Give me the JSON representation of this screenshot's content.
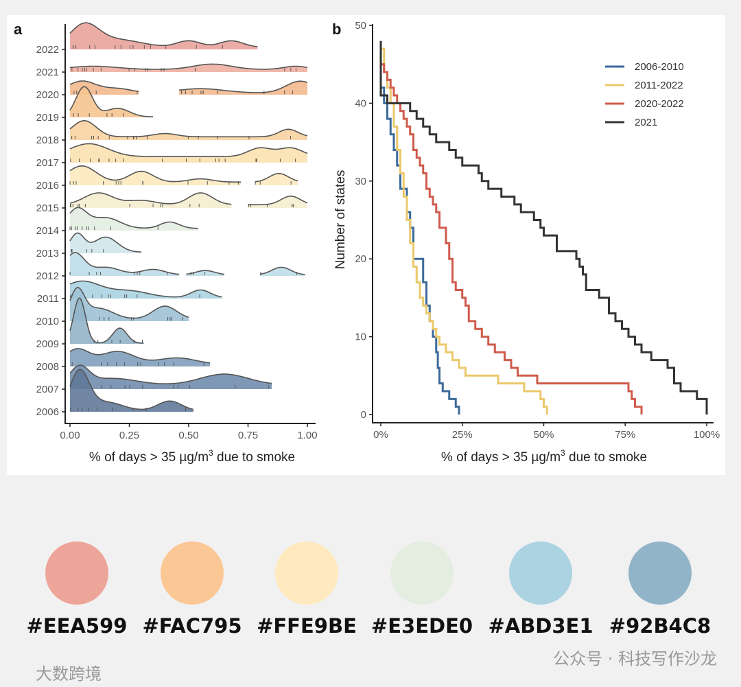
{
  "chart_data": [
    {
      "type": "ridgeline",
      "panel_label": "a",
      "xlabel": "% of days > 35 µg/m",
      "xlabel_sup": "3",
      "xlabel_tail": " due to smoke",
      "xlim": [
        0,
        1
      ],
      "xticks": [
        "0.00",
        "0.25",
        "0.50",
        "0.75",
        "1.00"
      ],
      "series": [
        {
          "year": "2022",
          "color": "#E9A39B",
          "segments": [
            [
              0,
              0.79
            ]
          ],
          "base": 0.1,
          "peaks": [
            [
              0.06,
              0.06,
              1.0
            ],
            [
              0.2,
              0.1,
              0.35
            ],
            [
              0.5,
              0.05,
              0.3
            ],
            [
              0.68,
              0.05,
              0.3
            ]
          ]
        },
        {
          "year": "2021",
          "color": "#EEB0A2",
          "segments": [
            [
              0,
              1
            ]
          ],
          "base": 0.12,
          "peaks": [
            [
              0.1,
              0.1,
              0.15
            ],
            [
              0.6,
              0.08,
              0.25
            ],
            [
              0.95,
              0.05,
              0.15
            ]
          ]
        },
        {
          "year": "2020",
          "color": "#F2B98E",
          "segments": [
            [
              0,
              0.29
            ],
            [
              0.46,
              1
            ]
          ],
          "base": 0.08,
          "peaks": [
            [
              0.05,
              0.06,
              0.55
            ],
            [
              0.2,
              0.06,
              0.2
            ],
            [
              0.55,
              0.1,
              0.2
            ],
            [
              0.97,
              0.06,
              0.55
            ]
          ]
        },
        {
          "year": "2019",
          "color": "#F5C48F",
          "segments": [
            [
              0,
              0.35
            ]
          ],
          "base": 0.02,
          "peaks": [
            [
              0.06,
              0.035,
              1.4
            ],
            [
              0.2,
              0.05,
              0.4
            ]
          ]
        },
        {
          "year": "2018",
          "color": "#F8D3A2",
          "segments": [
            [
              0,
              1
            ]
          ],
          "base": 0.15,
          "peaks": [
            [
              0.06,
              0.05,
              0.75
            ],
            [
              0.4,
              0.05,
              0.15
            ],
            [
              0.92,
              0.04,
              0.35
            ]
          ]
        },
        {
          "year": "2017",
          "color": "#FBE1B0",
          "segments": [
            [
              0,
              1
            ]
          ],
          "base": 0.28,
          "peaks": [
            [
              0.08,
              0.08,
              0.6
            ],
            [
              0.8,
              0.05,
              0.4
            ],
            [
              0.93,
              0.05,
              0.4
            ]
          ]
        },
        {
          "year": "2016",
          "color": "#FCE9BE",
          "segments": [
            [
              0,
              0.72
            ],
            [
              0.78,
              0.96
            ]
          ],
          "base": 0.15,
          "peaks": [
            [
              0.05,
              0.06,
              0.75
            ],
            [
              0.3,
              0.05,
              0.5
            ],
            [
              0.55,
              0.05,
              0.15
            ],
            [
              0.88,
              0.04,
              0.4
            ]
          ]
        },
        {
          "year": "2015",
          "color": "#F5EDCF",
          "segments": [
            [
              0,
              0.68
            ],
            [
              0.75,
              1
            ]
          ],
          "base": 0.15,
          "peaks": [
            [
              0.12,
              0.06,
              0.55
            ],
            [
              0.3,
              0.06,
              0.2
            ],
            [
              0.55,
              0.05,
              0.55
            ],
            [
              0.93,
              0.04,
              0.4
            ]
          ]
        },
        {
          "year": "2014",
          "color": "#E3EDE0",
          "segments": [
            [
              0,
              0.54
            ]
          ],
          "base": 0.1,
          "peaks": [
            [
              0.03,
              0.04,
              0.9
            ],
            [
              0.15,
              0.06,
              0.5
            ],
            [
              0.42,
              0.04,
              0.3
            ]
          ]
        },
        {
          "year": "2013",
          "color": "#CFE6EC",
          "segments": [
            [
              0,
              0.3
            ]
          ],
          "base": 0.05,
          "peaks": [
            [
              0.03,
              0.03,
              0.85
            ],
            [
              0.15,
              0.05,
              0.7
            ]
          ]
        },
        {
          "year": "2012",
          "color": "#BEDDE8",
          "segments": [
            [
              0,
              0.46
            ],
            [
              0.49,
              0.65
            ],
            [
              0.8,
              0.99
            ]
          ],
          "base": 0.05,
          "peaks": [
            [
              0.02,
              0.04,
              1.0
            ],
            [
              0.15,
              0.06,
              0.35
            ],
            [
              0.35,
              0.05,
              0.25
            ],
            [
              0.57,
              0.04,
              0.2
            ],
            [
              0.89,
              0.04,
              0.35
            ]
          ]
        },
        {
          "year": "2011",
          "color": "#ABD3E1",
          "segments": [
            [
              0,
              0.64
            ]
          ],
          "base": 0.05,
          "peaks": [
            [
              0.05,
              0.08,
              0.75
            ],
            [
              0.25,
              0.08,
              0.3
            ],
            [
              0.55,
              0.04,
              0.35
            ]
          ]
        },
        {
          "year": "2010",
          "color": "#9FC2D6",
          "segments": [
            [
              0,
              0.5
            ]
          ],
          "base": 0.1,
          "peaks": [
            [
              0.03,
              0.03,
              1.3
            ],
            [
              0.12,
              0.06,
              0.5
            ],
            [
              0.4,
              0.05,
              0.6
            ]
          ]
        },
        {
          "year": "2009",
          "color": "#92B4C8",
          "segments": [
            [
              0,
              0.31
            ]
          ],
          "base": 0.03,
          "peaks": [
            [
              0.04,
              0.025,
              2.1
            ],
            [
              0.21,
              0.03,
              0.7
            ]
          ]
        },
        {
          "year": "2008",
          "color": "#809EBB",
          "segments": [
            [
              0,
              0.59
            ]
          ],
          "base": 0.1,
          "peaks": [
            [
              0.03,
              0.05,
              0.7
            ],
            [
              0.2,
              0.07,
              0.6
            ],
            [
              0.45,
              0.08,
              0.3
            ]
          ]
        },
        {
          "year": "2007",
          "color": "#718DAE",
          "segments": [
            [
              0,
              0.85
            ]
          ],
          "base": 0.2,
          "peaks": [
            [
              0.04,
              0.04,
              0.8
            ],
            [
              0.18,
              0.1,
              0.3
            ],
            [
              0.65,
              0.1,
              0.5
            ]
          ]
        },
        {
          "year": "2006",
          "color": "#627A9A",
          "segments": [
            [
              0,
              0.52
            ]
          ],
          "base": 0.05,
          "peaks": [
            [
              0.04,
              0.04,
              1.8
            ],
            [
              0.15,
              0.07,
              0.4
            ],
            [
              0.42,
              0.05,
              0.45
            ]
          ]
        }
      ]
    },
    {
      "type": "line",
      "step": true,
      "panel_label": "b",
      "xlabel": "% of days > 35 µg/m",
      "xlabel_sup": "3",
      "xlabel_tail": " due to smoke",
      "ylabel": "Number of states",
      "xlim": [
        0,
        100
      ],
      "ylim": [
        0,
        50
      ],
      "xticks": [
        "0%",
        "25%",
        "50%",
        "75%",
        "100%"
      ],
      "yticks": [
        "0",
        "10",
        "20",
        "30",
        "40",
        "50"
      ],
      "legend_position": "top-right",
      "series": [
        {
          "name": "2006-2010",
          "color": "#3B6A9A",
          "points": [
            [
              0,
              47
            ],
            [
              0,
              42
            ],
            [
              1,
              40
            ],
            [
              2,
              38
            ],
            [
              3,
              36
            ],
            [
              4,
              34
            ],
            [
              5,
              32
            ],
            [
              6,
              29
            ],
            [
              8,
              29
            ],
            [
              8,
              26
            ],
            [
              9,
              24
            ],
            [
              10,
              20
            ],
            [
              12,
              20
            ],
            [
              13,
              17
            ],
            [
              14,
              14
            ],
            [
              15,
              12
            ],
            [
              16,
              10
            ],
            [
              17,
              8
            ],
            [
              17.5,
              6
            ],
            [
              18,
              4
            ],
            [
              19,
              3
            ],
            [
              21,
              2
            ],
            [
              23,
              1
            ],
            [
              24,
              0
            ]
          ]
        },
        {
          "name": "2011-2022",
          "color": "#EBC86A",
          "points": [
            [
              0,
              47
            ],
            [
              1,
              44
            ],
            [
              2,
              42
            ],
            [
              3,
              40
            ],
            [
              4,
              37
            ],
            [
              5,
              34
            ],
            [
              6,
              31
            ],
            [
              7,
              28
            ],
            [
              8,
              25
            ],
            [
              9,
              22
            ],
            [
              10,
              19
            ],
            [
              11,
              17
            ],
            [
              12,
              15
            ],
            [
              13,
              14
            ],
            [
              14,
              13
            ],
            [
              15,
              12
            ],
            [
              16,
              11
            ],
            [
              17,
              10
            ],
            [
              18,
              9
            ],
            [
              20,
              8
            ],
            [
              22,
              7
            ],
            [
              24,
              6
            ],
            [
              26,
              5
            ],
            [
              35,
              5
            ],
            [
              36,
              4
            ],
            [
              43,
              4
            ],
            [
              44,
              3
            ],
            [
              48,
              3
            ],
            [
              49,
              2
            ],
            [
              50,
              1
            ],
            [
              51,
              0
            ]
          ]
        },
        {
          "name": "2020-2022",
          "color": "#CF5B4C",
          "points": [
            [
              0,
              45
            ],
            [
              1,
              44
            ],
            [
              2,
              43
            ],
            [
              3,
              42
            ],
            [
              4,
              41
            ],
            [
              5,
              40
            ],
            [
              6,
              39
            ],
            [
              7,
              38
            ],
            [
              8,
              37
            ],
            [
              9,
              36
            ],
            [
              10,
              34
            ],
            [
              11,
              33
            ],
            [
              12,
              32
            ],
            [
              13,
              31
            ],
            [
              14,
              29
            ],
            [
              15,
              28
            ],
            [
              16,
              27
            ],
            [
              17,
              26
            ],
            [
              18,
              24
            ],
            [
              20,
              22
            ],
            [
              21,
              20
            ],
            [
              22,
              17
            ],
            [
              23,
              16
            ],
            [
              25,
              15
            ],
            [
              26,
              14
            ],
            [
              27,
              12
            ],
            [
              29,
              11
            ],
            [
              31,
              10
            ],
            [
              33,
              9
            ],
            [
              35,
              8
            ],
            [
              38,
              7
            ],
            [
              40,
              6
            ],
            [
              42,
              5
            ],
            [
              48,
              4
            ],
            [
              76,
              3
            ],
            [
              77,
              2
            ],
            [
              78,
              1
            ],
            [
              80,
              0
            ]
          ]
        },
        {
          "name": "2021",
          "color": "#333333",
          "points": [
            [
              0,
              48
            ],
            [
              0,
              41
            ],
            [
              2,
              41
            ],
            [
              2,
              40
            ],
            [
              7,
              40
            ],
            [
              9,
              39
            ],
            [
              11,
              38
            ],
            [
              13,
              37
            ],
            [
              15,
              36
            ],
            [
              17,
              35
            ],
            [
              21,
              34
            ],
            [
              23,
              33
            ],
            [
              25,
              32
            ],
            [
              30,
              31
            ],
            [
              31,
              30
            ],
            [
              33,
              29
            ],
            [
              37,
              28
            ],
            [
              41,
              27
            ],
            [
              43,
              26
            ],
            [
              47,
              25
            ],
            [
              49,
              24
            ],
            [
              50,
              23
            ],
            [
              54,
              21
            ],
            [
              60,
              20
            ],
            [
              61,
              19
            ],
            [
              62,
              18
            ],
            [
              63,
              16
            ],
            [
              67,
              15
            ],
            [
              70,
              13
            ],
            [
              72,
              12
            ],
            [
              74,
              11
            ],
            [
              76,
              10
            ],
            [
              78,
              9
            ],
            [
              80,
              8
            ],
            [
              83,
              7
            ],
            [
              88,
              6
            ],
            [
              90,
              4
            ],
            [
              92,
              3
            ],
            [
              97,
              3
            ],
            [
              97,
              2
            ],
            [
              100,
              2
            ],
            [
              100,
              0
            ]
          ]
        }
      ]
    }
  ],
  "palette": [
    {
      "hex": "#EEA599",
      "label": "#EEA599"
    },
    {
      "hex": "#FAC795",
      "label": "#FAC795"
    },
    {
      "hex": "#FFE9BE",
      "label": "#FFE9BE"
    },
    {
      "hex": "#E3EDE0",
      "label": "#E3EDE0"
    },
    {
      "hex": "#ABD3E1",
      "label": "#ABD3E1"
    },
    {
      "hex": "#92B4C8",
      "label": "#92B4C8"
    }
  ],
  "watermark": {
    "right": "公众号 · 科技写作沙龙",
    "left": "大数跨境"
  }
}
